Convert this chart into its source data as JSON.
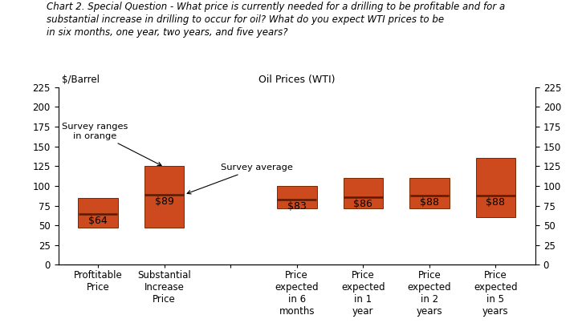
{
  "title_line1": "Chart 2. Special Question - What price is currently needed for a drilling to be profitable and for a",
  "title_line2": "substantial increase in drilling to occur for oil? What do you expect WTI prices to be",
  "title_line3": "in six months, one year, two years, and five years?",
  "subtitle_left": "$/Barrel",
  "subtitle_center": "Oil Prices (WTI)",
  "categories": [
    "Proftitable\nPrice",
    "Substantial\nIncrease\nPrice",
    "",
    "Price\nexpected\nin 6\nmonths",
    "Price\nexpected\nin 1\nyear",
    "Price\nexpected\nin 2\nyears",
    "Price\nexpected\nin 5\nyears"
  ],
  "bar_bottoms": [
    47,
    47,
    0,
    72,
    72,
    72,
    60
  ],
  "bar_tops": [
    85,
    125,
    0,
    100,
    110,
    110,
    135
  ],
  "averages": [
    64,
    89,
    0,
    83,
    86,
    88,
    88
  ],
  "labels": [
    "$64",
    "$89",
    "",
    "$83",
    "$86",
    "$88",
    "$88"
  ],
  "bar_color": "#CC4A1E",
  "avg_line_color": "#5C1A00",
  "ylim": [
    0,
    225
  ],
  "yticks": [
    0,
    25,
    50,
    75,
    100,
    125,
    150,
    175,
    200,
    225
  ],
  "annotation_ranges": "Survey ranges\nin orange",
  "annotation_avg": "Survey average",
  "title_fontsize": 8.5,
  "label_fontsize": 9,
  "tick_fontsize": 8.5,
  "axis_label_fontsize": 8.5
}
